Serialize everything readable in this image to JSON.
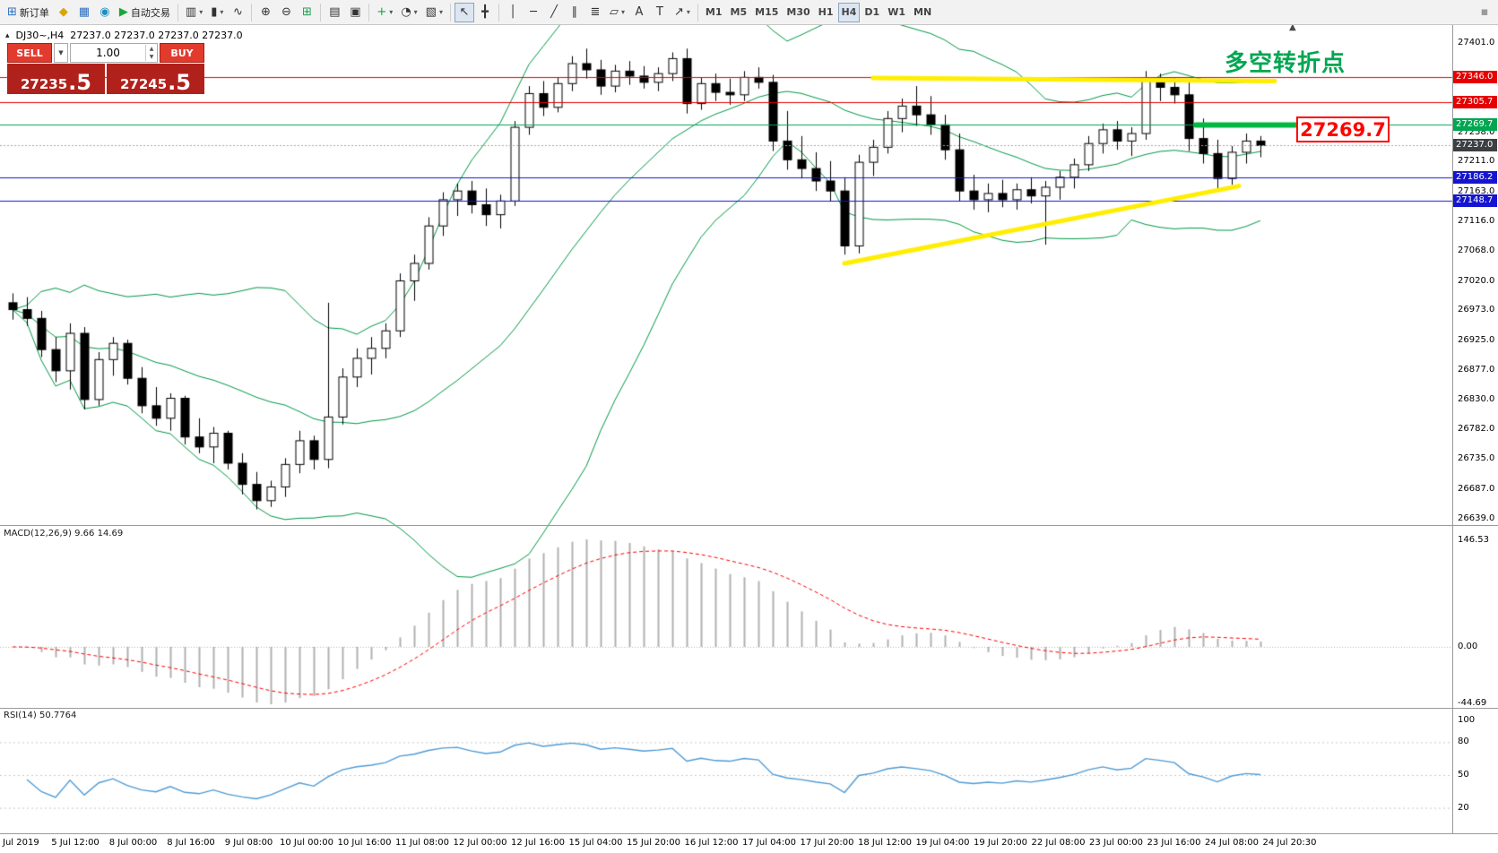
{
  "symbol_info": {
    "symbol": "DJ30~,H4",
    "ohlc": "27237.0 27237.0 27237.0 27237.0"
  },
  "trade_panel": {
    "sell_label": "SELL",
    "buy_label": "BUY",
    "volume": "1.00",
    "sell_main": "27235",
    "sell_pips": ".5",
    "buy_main": "27245",
    "buy_pips": ".5"
  },
  "annotations": {
    "turning_point": "多空转折点",
    "price_box": "27269.7"
  },
  "indicators": {
    "macd": {
      "name": "MACD(12,26,9)",
      "values": "9.66 14.69",
      "fast": 12,
      "slow": 26,
      "signal": 9,
      "scale": {
        "max": "146.53",
        "zero": "0.00",
        "min": "-44.69"
      }
    },
    "rsi": {
      "name": "RSI(14)",
      "value": "50.7764",
      "period": 14,
      "scale": [
        100,
        80,
        50,
        20
      ]
    }
  },
  "price_axis": {
    "labels": [
      "27401.0",
      "27258.0",
      "27211.0",
      "27163.0",
      "27116.0",
      "27068.0",
      "27020.0",
      "26973.0",
      "26925.0",
      "26877.0",
      "26830.0",
      "26782.0",
      "26735.0",
      "26687.0",
      "26639.0"
    ]
  },
  "time_axis": {
    "labels": [
      "Jul 2019",
      "5 Jul 12:00",
      "8 Jul 00:00",
      "8 Jul 16:00",
      "9 Jul 08:00",
      "10 Jul 00:00",
      "10 Jul 16:00",
      "11 Jul 08:00",
      "12 Jul 00:00",
      "12 Jul 16:00",
      "15 Jul 04:00",
      "15 Jul 20:00",
      "16 Jul 12:00",
      "17 Jul 04:00",
      "17 Jul 20:00",
      "18 Jul 12:00",
      "19 Jul 04:00",
      "19 Jul 20:00",
      "22 Jul 08:00",
      "23 Jul 00:00",
      "23 Jul 16:00",
      "24 Jul 08:00",
      "24 Jul 20:30"
    ]
  },
  "toolbar": {
    "groups": [
      {
        "items": [
          {
            "name": "new-order-button",
            "icon": "⊞",
            "icon_color": "#2e6fbe",
            "label": "新订单"
          },
          {
            "name": "profiles-icon",
            "icon": "◆",
            "icon_color": "#dba400"
          },
          {
            "name": "market-watch-icon",
            "icon": "▦",
            "icon_color": "#2e6fbe"
          },
          {
            "name": "navigator-icon",
            "icon": "◉",
            "icon_color": "#1b8fc4"
          },
          {
            "name": "autotrading-button",
            "icon": "▶",
            "icon_color": "#18a53a",
            "label": "自动交易"
          }
        ]
      },
      {
        "items": [
          {
            "name": "bars-chart-button",
            "icon": "▥",
            "dropdown": true
          },
          {
            "name": "candlestick-chart-button",
            "icon": "▮",
            "dropdown": true
          },
          {
            "name": "line-chart-button",
            "icon": "∿"
          }
        ]
      },
      {
        "items": [
          {
            "name": "zoom-in-button",
            "icon": "⊕"
          },
          {
            "name": "zoom-out-button",
            "icon": "⊖"
          },
          {
            "name": "tile-windows-button",
            "icon": "⊞",
            "icon_color": "#1d9e50"
          }
        ]
      },
      {
        "items": [
          {
            "name": "cascade-windows-button",
            "icon": "▤"
          },
          {
            "name": "arrange-windows-button",
            "icon": "▣"
          }
        ]
      },
      {
        "items": [
          {
            "name": "indicators-button",
            "icon": "+",
            "icon_color": "#18a53a",
            "dropdown": true
          },
          {
            "name": "periods-button",
            "icon": "◔",
            "dropdown": true
          },
          {
            "name": "templates-button",
            "icon": "▧",
            "dropdown": true
          }
        ]
      },
      {
        "items": [
          {
            "name": "cursor-button",
            "icon": "↖",
            "active": true
          },
          {
            "name": "crosshair-button",
            "icon": "╋"
          }
        ]
      },
      {
        "items": [
          {
            "name": "vertical-line-button",
            "icon": "│"
          },
          {
            "name": "horizontal-line-button",
            "icon": "─"
          },
          {
            "name": "trendline-button",
            "icon": "╱"
          },
          {
            "name": "channel-button",
            "icon": "∥"
          },
          {
            "name": "fibonacci-button",
            "icon": "≣"
          },
          {
            "name": "shapes-button",
            "icon": "▱",
            "dropdown": true
          },
          {
            "name": "text-button",
            "icon": "A"
          },
          {
            "name": "label-button",
            "icon": "T"
          },
          {
            "name": "arrows-button",
            "icon": "↗",
            "dropdown": true
          }
        ]
      },
      {
        "items": [
          {
            "name": "timeframe-m1-button",
            "label": "M1",
            "tf": true
          },
          {
            "name": "timeframe-m5-button",
            "label": "M5",
            "tf": true
          },
          {
            "name": "timeframe-m15-button",
            "label": "M15",
            "tf": true
          },
          {
            "name": "timeframe-m30-button",
            "label": "M30",
            "tf": true
          },
          {
            "name": "timeframe-h1-button",
            "label": "H1",
            "tf": true
          },
          {
            "name": "timeframe-h4-button",
            "label": "H4",
            "tf": true,
            "active": true
          },
          {
            "name": "timeframe-d1-button",
            "label": "D1",
            "tf": true
          },
          {
            "name": "timeframe-w1-button",
            "label": "W1",
            "tf": true
          },
          {
            "name": "timeframe-mn-button",
            "label": "MN",
            "tf": true
          }
        ]
      },
      {
        "items": [
          {
            "name": "toolbar-customize-icon",
            "icon": "▪",
            "icon_color": "#9a9a9a",
            "right": true
          }
        ]
      }
    ]
  },
  "chart_data": {
    "type": "candlestick",
    "symbol": "DJ30~",
    "timeframe": "H4",
    "price_axis_range": {
      "max": 27401.0,
      "min": 26639.0
    },
    "colors": {
      "bull": "#ffffff",
      "bear": "#000000",
      "wick": "#000000",
      "bollinger": "#009944",
      "macd_hist": "#b0b0b0",
      "macd_signal": "#ff0000",
      "rsi_line": "#4f9bd5",
      "trend_yellow": "#ffee00",
      "pivot_green": "#00b841"
    },
    "bollinger": {
      "period": 20,
      "deviation": 2
    },
    "levels": [
      {
        "price": 27346.0,
        "label": "27346.0",
        "color": "#e60000"
      },
      {
        "price": 27305.7,
        "label": "27305.7",
        "color": "#e60000"
      },
      {
        "price": 27269.7,
        "label": "27269.7",
        "color": "#00a651"
      },
      {
        "price": 27237.0,
        "label": "27237.0",
        "color": "#a8a8a8",
        "badge_color": "#3c4043",
        "current": true
      },
      {
        "price": 27186.2,
        "label": "27186.2",
        "color": "#1515d0"
      },
      {
        "price": 27148.7,
        "label": "27148.7",
        "color": "#1515d0"
      }
    ],
    "objects": [
      {
        "name": "resistance-trendline",
        "color": "#ffee00",
        "width": 5,
        "from": {
          "bar": 60,
          "price": 27345
        },
        "to": {
          "bar": 88,
          "price": 27340
        }
      },
      {
        "name": "support-trendline",
        "color": "#ffee00",
        "width": 5,
        "from": {
          "bar": 58,
          "price": 27048
        },
        "to": {
          "bar": 85.5,
          "price": 27172
        }
      },
      {
        "name": "pivot-segment",
        "color": "#00b841",
        "width": 6,
        "from": {
          "bar": 82.5,
          "price": 27269.7
        },
        "to": {
          "bar": 89.6,
          "price": 27269.7
        }
      }
    ],
    "candles": [
      [
        26985,
        27000,
        26958,
        26974
      ],
      [
        26974,
        26994,
        26948,
        26960
      ],
      [
        26960,
        26972,
        26898,
        26910
      ],
      [
        26910,
        26930,
        26858,
        26876
      ],
      [
        26876,
        26952,
        26846,
        26936
      ],
      [
        26936,
        26946,
        26814,
        26830
      ],
      [
        26830,
        26906,
        26820,
        26894
      ],
      [
        26894,
        26930,
        26868,
        26920
      ],
      [
        26920,
        26926,
        26854,
        26864
      ],
      [
        26864,
        26882,
        26808,
        26820
      ],
      [
        26820,
        26850,
        26788,
        26800
      ],
      [
        26800,
        26840,
        26780,
        26832
      ],
      [
        26832,
        26836,
        26758,
        26770
      ],
      [
        26770,
        26800,
        26744,
        26754
      ],
      [
        26754,
        26786,
        26728,
        26776
      ],
      [
        26776,
        26780,
        26718,
        26728
      ],
      [
        26728,
        26744,
        26678,
        26694
      ],
      [
        26694,
        26714,
        26654,
        26668
      ],
      [
        26668,
        26700,
        26658,
        26690
      ],
      [
        26690,
        26736,
        26674,
        26726
      ],
      [
        26726,
        26780,
        26712,
        26764
      ],
      [
        26764,
        26772,
        26718,
        26734
      ],
      [
        26734,
        26985,
        26720,
        26802
      ],
      [
        26802,
        26880,
        26790,
        26866
      ],
      [
        26866,
        26912,
        26850,
        26896
      ],
      [
        26896,
        26930,
        26870,
        26912
      ],
      [
        26912,
        26952,
        26896,
        26940
      ],
      [
        26940,
        27032,
        26930,
        27020
      ],
      [
        27020,
        27062,
        26988,
        27048
      ],
      [
        27048,
        27122,
        27038,
        27108
      ],
      [
        27108,
        27162,
        27092,
        27150
      ],
      [
        27150,
        27176,
        27124,
        27164
      ],
      [
        27164,
        27180,
        27128,
        27142
      ],
      [
        27142,
        27168,
        27108,
        27126
      ],
      [
        27126,
        27158,
        27104,
        27148
      ],
      [
        27148,
        27276,
        27140,
        27266
      ],
      [
        27266,
        27332,
        27254,
        27320
      ],
      [
        27320,
        27340,
        27284,
        27298
      ],
      [
        27298,
        27346,
        27290,
        27336
      ],
      [
        27336,
        27380,
        27324,
        27368
      ],
      [
        27368,
        27392,
        27344,
        27358
      ],
      [
        27358,
        27374,
        27318,
        27332
      ],
      [
        27332,
        27366,
        27322,
        27356
      ],
      [
        27356,
        27372,
        27334,
        27348
      ],
      [
        27348,
        27364,
        27328,
        27338
      ],
      [
        27338,
        27362,
        27324,
        27352
      ],
      [
        27352,
        27386,
        27340,
        27376
      ],
      [
        27376,
        27392,
        27288,
        27304
      ],
      [
        27304,
        27346,
        27294,
        27336
      ],
      [
        27336,
        27352,
        27308,
        27322
      ],
      [
        27322,
        27344,
        27302,
        27318
      ],
      [
        27318,
        27356,
        27308,
        27346
      ],
      [
        27346,
        27362,
        27328,
        27338
      ],
      [
        27338,
        27350,
        27228,
        27244
      ],
      [
        27244,
        27292,
        27198,
        27214
      ],
      [
        27214,
        27252,
        27184,
        27200
      ],
      [
        27200,
        27226,
        27164,
        27180
      ],
      [
        27180,
        27212,
        27148,
        27164
      ],
      [
        27164,
        27186,
        27062,
        27076
      ],
      [
        27076,
        27222,
        27064,
        27210
      ],
      [
        27210,
        27246,
        27188,
        27234
      ],
      [
        27234,
        27292,
        27224,
        27280
      ],
      [
        27280,
        27312,
        27258,
        27300
      ],
      [
        27300,
        27332,
        27268,
        27286
      ],
      [
        27286,
        27316,
        27254,
        27270
      ],
      [
        27270,
        27286,
        27214,
        27230
      ],
      [
        27230,
        27256,
        27148,
        27164
      ],
      [
        27164,
        27190,
        27134,
        27150
      ],
      [
        27150,
        27176,
        27130,
        27160
      ],
      [
        27160,
        27182,
        27138,
        27150
      ],
      [
        27150,
        27176,
        27134,
        27166
      ],
      [
        27166,
        27186,
        27144,
        27156
      ],
      [
        27156,
        27180,
        27078,
        27170
      ],
      [
        27170,
        27196,
        27150,
        27186
      ],
      [
        27186,
        27216,
        27168,
        27206
      ],
      [
        27206,
        27252,
        27196,
        27240
      ],
      [
        27240,
        27272,
        27224,
        27262
      ],
      [
        27262,
        27276,
        27230,
        27244
      ],
      [
        27244,
        27266,
        27220,
        27256
      ],
      [
        27256,
        27356,
        27246,
        27340
      ],
      [
        27340,
        27352,
        27308,
        27330
      ],
      [
        27330,
        27346,
        27304,
        27318
      ],
      [
        27318,
        27340,
        27228,
        27248
      ],
      [
        27248,
        27280,
        27208,
        27224
      ],
      [
        27224,
        27246,
        27168,
        27184
      ],
      [
        27184,
        27236,
        27174,
        27226
      ],
      [
        27226,
        27256,
        27208,
        27244
      ],
      [
        27244,
        27252,
        27218,
        27237
      ]
    ]
  }
}
